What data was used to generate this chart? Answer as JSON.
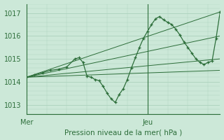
{
  "bg_color": "#cce8d8",
  "grid_color": "#b0d4c0",
  "line_color": "#2d6e3a",
  "marker_color": "#2d6e3a",
  "title": "Pression niveau de la mer( hPa )",
  "ylim": [
    1012.6,
    1017.4
  ],
  "xlim": [
    0,
    48
  ],
  "yticks": [
    1013,
    1014,
    1015,
    1016,
    1017
  ],
  "xtick_labels": [
    "Mer",
    "Jeu"
  ],
  "xtick_positions": [
    0,
    30
  ],
  "day_line_x": 30,
  "figsize": [
    3.2,
    2.0
  ],
  "dpi": 100,
  "main_series": [
    [
      0,
      1014.2,
      2,
      1014.3,
      4,
      1014.4,
      6,
      1014.5,
      8,
      1014.55,
      10,
      1014.65,
      12,
      1015.0,
      13,
      1015.05,
      14,
      1014.85,
      15,
      1014.25,
      16,
      1014.2,
      17,
      1014.1,
      18,
      1014.05,
      19,
      1013.8,
      20,
      1013.5,
      21,
      1013.25,
      22,
      1013.1,
      23,
      1013.45,
      24,
      1013.7,
      25,
      1014.1,
      26,
      1014.6,
      27,
      1015.05,
      28,
      1015.5,
      29,
      1015.9,
      30,
      1016.2,
      31,
      1016.5,
      32,
      1016.75,
      33,
      1016.85,
      34,
      1016.7,
      35,
      1016.6,
      36,
      1016.5,
      37,
      1016.3,
      38,
      1016.05,
      39,
      1015.75,
      40,
      1015.5,
      41,
      1015.25,
      42,
      1015.0,
      43,
      1014.85,
      44,
      1014.75,
      45,
      1014.85,
      46,
      1014.9,
      47,
      1015.9,
      48,
      1017.05
    ]
  ],
  "trend_lines": [
    [
      0,
      1014.2,
      48,
      1017.05
    ],
    [
      0,
      1014.2,
      48,
      1016.0
    ],
    [
      0,
      1014.2,
      48,
      1015.0
    ],
    [
      0,
      1014.2,
      48,
      1014.5
    ]
  ]
}
